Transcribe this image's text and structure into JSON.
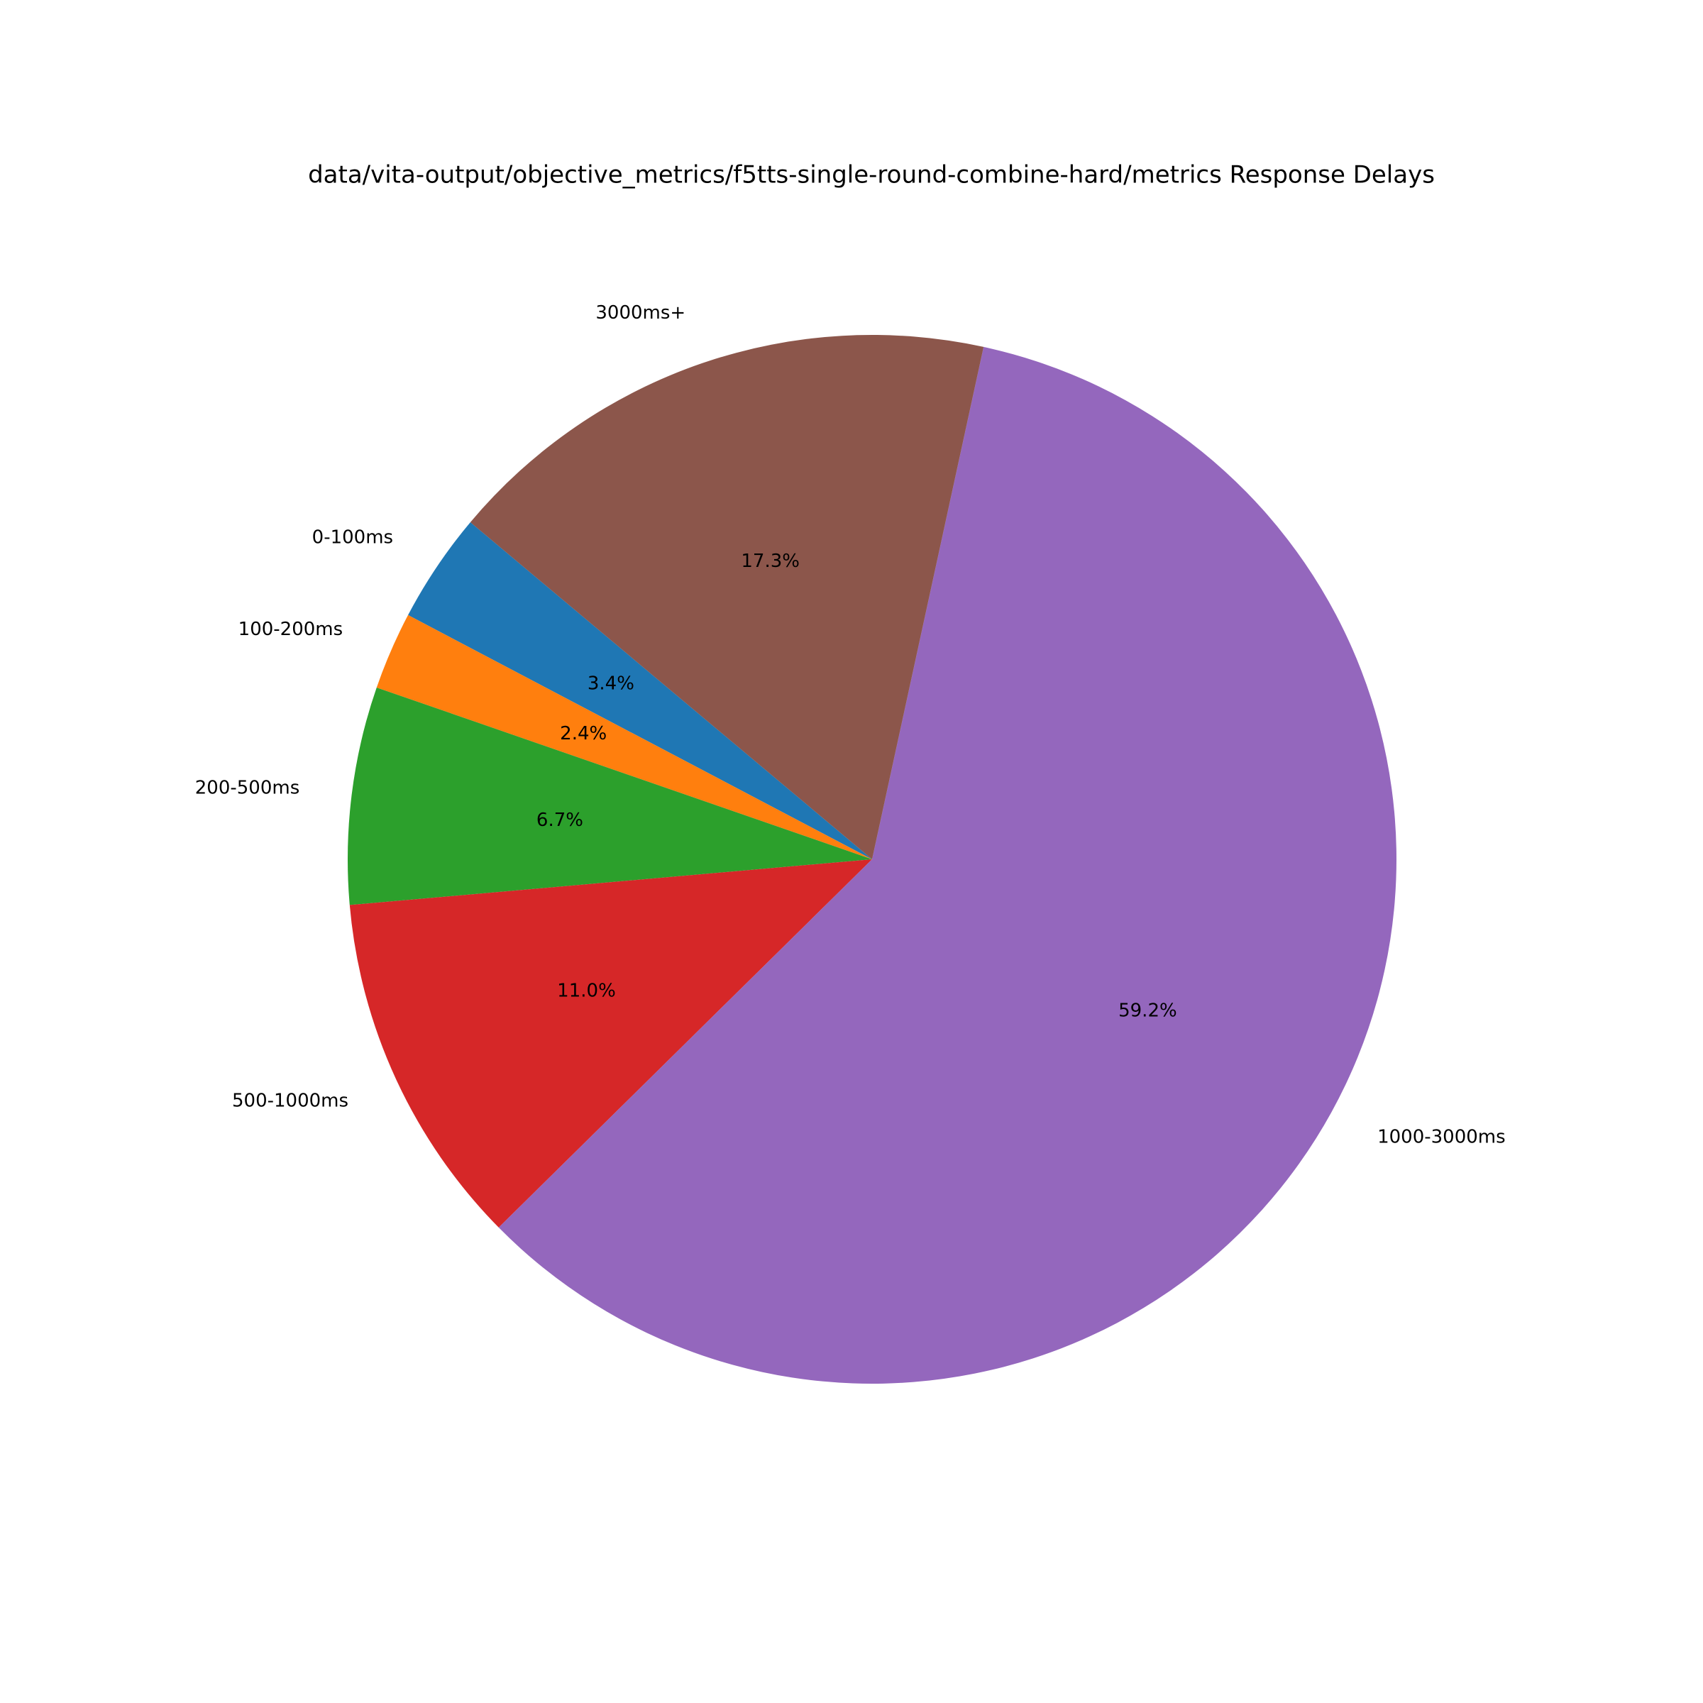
{
  "chart_data": {
    "type": "pie",
    "title": "data/vita-output/objective_metrics/f5tts-single-round-combine-hard/metrics Response Delays",
    "categories": [
      "0-100ms",
      "100-200ms",
      "200-500ms",
      "500-1000ms",
      "1000-3000ms",
      "3000ms+"
    ],
    "values": [
      3.4,
      2.4,
      6.7,
      11.0,
      59.2,
      17.3
    ],
    "value_labels": [
      "3.4%",
      "2.4%",
      "6.7%",
      "11.0%",
      "59.2%",
      "17.3%"
    ],
    "colors": [
      "#1f77b4",
      "#ff7f0e",
      "#2ca02c",
      "#d62728",
      "#9467bd",
      "#8c564b"
    ]
  }
}
